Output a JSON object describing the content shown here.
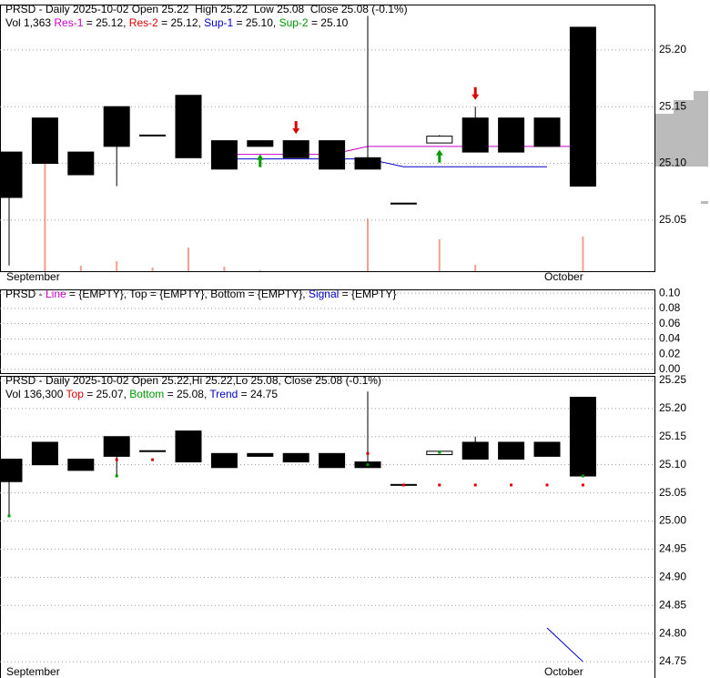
{
  "chart_data": [
    {
      "type": "candlestick",
      "header": [
        [
          {
            "text": "PRSD - Daily 2025-10-02 Open 25.22  High 25.22  Low 25.08  Close 25.08 (-0.1%)"
          }
        ],
        [
          {
            "text": "Vol 1,363 "
          },
          {
            "text": "Res-1",
            "color": "#cc00cc"
          },
          {
            "text": " = 25.12, "
          },
          {
            "text": "Res-2",
            "color": "#dd0000"
          },
          {
            "text": " = 25.12, "
          },
          {
            "text": "Sup-1",
            "color": "#0000cc"
          },
          {
            "text": " = 25.10, "
          },
          {
            "text": "Sup-2",
            "color": "#009900"
          },
          {
            "text": " = 25.10"
          }
        ]
      ],
      "categories": [
        "September",
        null,
        null,
        null,
        null,
        null,
        null,
        null,
        null,
        null,
        null,
        null,
        null,
        null,
        null,
        "October",
        null
      ],
      "open": [
        25.11,
        25.14,
        25.11,
        25.15,
        25.125,
        25.16,
        25.12,
        25.12,
        25.12,
        25.12,
        25.105,
        25.065,
        25.118,
        25.14,
        25.14,
        25.14,
        25.22
      ],
      "high": [
        25.11,
        25.14,
        25.11,
        25.15,
        25.125,
        25.16,
        25.12,
        25.12,
        25.12,
        25.12,
        25.23,
        25.065,
        25.125,
        25.15,
        25.14,
        25.14,
        25.22
      ],
      "low": [
        25.01,
        25.1,
        25.09,
        25.08,
        25.125,
        25.105,
        25.095,
        25.115,
        25.105,
        25.095,
        25.095,
        25.065,
        25.118,
        25.11,
        25.11,
        25.115,
        25.08
      ],
      "close": [
        25.07,
        25.1,
        25.09,
        25.115,
        25.125,
        25.105,
        25.095,
        25.115,
        25.105,
        25.095,
        25.095,
        25.065,
        25.124,
        25.11,
        25.11,
        25.115,
        25.08
      ],
      "color": "#000000",
      "volume": [
        0,
        4230,
        215,
        394,
        143,
        932,
        180,
        36,
        0,
        0,
        2080,
        0,
        1255,
        250,
        0,
        0,
        1363
      ],
      "volume_color": "#f0a090",
      "volume_ylim": [
        0,
        10500
      ],
      "lines": [
        {
          "color": "#cc00cc",
          "values": [
            null,
            null,
            null,
            null,
            null,
            null,
            25.108,
            25.108,
            25.108,
            25.108,
            25.115,
            25.115,
            25.115,
            25.115,
            25.115,
            25.115,
            25.115
          ]
        },
        {
          "color": "#0000cc",
          "values": [
            null,
            null,
            null,
            null,
            null,
            null,
            25.104,
            25.104,
            25.104,
            25.104,
            25.104,
            25.097,
            25.097,
            25.097,
            25.097,
            25.097,
            null
          ]
        }
      ],
      "arrows": [
        {
          "color": "#dd0000",
          "direction": "down",
          "values": [
            null,
            null,
            null,
            null,
            null,
            null,
            null,
            null,
            25.126,
            null,
            null,
            null,
            null,
            25.156,
            null,
            null,
            null
          ]
        },
        {
          "color": "#009900",
          "direction": "up",
          "values": [
            null,
            null,
            null,
            null,
            null,
            null,
            null,
            25.108,
            null,
            null,
            null,
            null,
            25.112,
            null,
            null,
            null,
            null
          ]
        }
      ],
      "ylim": [
        25.005,
        25.24
      ],
      "yticks": [
        {
          "value": 25.2,
          "label": "25.20"
        },
        25.15,
        {
          "value": 25.1,
          "label": "25.10"
        },
        25.05
      ],
      "grid": true
    },
    {
      "type": "line",
      "header": [
        [
          {
            "text": "PRSD - "
          },
          {
            "text": "Line",
            "color": "#cc00cc"
          },
          {
            "text": " = {EMPTY}, Top = {EMPTY}, Bottom = {EMPTY}, "
          },
          {
            "text": "Signal",
            "color": "#0000cc"
          },
          {
            "text": " = {EMPTY}"
          }
        ]
      ],
      "ylim": [
        -0.005,
        0.105
      ],
      "yticks": [
        {
          "value": 0.1,
          "label": "0.10"
        },
        0.08,
        0.06,
        0.04,
        0.02,
        {
          "value": 0,
          "label": "0.00"
        }
      ],
      "grid": true
    },
    {
      "type": "candlestick",
      "header": [
        [
          {
            "text": "PRSD - Daily 2025-10-02 Open 25.22,Hi 25.22,Lo 25.08, Close 25.08 (-0.1%)"
          }
        ],
        [
          {
            "text": "Vol 136,300 "
          },
          {
            "text": "Top",
            "color": "#dd0000"
          },
          {
            "text": " = 25.07, "
          },
          {
            "text": "Bottom",
            "color": "#009900"
          },
          {
            "text": " = 25.08, "
          },
          {
            "text": "Trend",
            "color": "#0000cc"
          },
          {
            "text": " = 24.75"
          }
        ]
      ],
      "categories": [
        "September",
        null,
        null,
        null,
        null,
        null,
        null,
        null,
        null,
        null,
        null,
        null,
        null,
        null,
        null,
        "October",
        null
      ],
      "open": [
        25.11,
        25.14,
        25.11,
        25.15,
        25.125,
        25.16,
        25.12,
        25.12,
        25.12,
        25.12,
        25.105,
        25.065,
        25.118,
        25.14,
        25.14,
        25.14,
        25.22
      ],
      "high": [
        25.11,
        25.14,
        25.11,
        25.15,
        25.125,
        25.16,
        25.12,
        25.12,
        25.12,
        25.12,
        25.23,
        25.065,
        25.125,
        25.15,
        25.14,
        25.14,
        25.22
      ],
      "low": [
        25.01,
        25.1,
        25.09,
        25.08,
        25.125,
        25.105,
        25.095,
        25.115,
        25.105,
        25.095,
        25.095,
        25.065,
        25.118,
        25.11,
        25.11,
        25.115,
        25.08
      ],
      "close": [
        25.07,
        25.1,
        25.09,
        25.115,
        25.125,
        25.105,
        25.095,
        25.115,
        25.105,
        25.095,
        25.095,
        25.065,
        25.124,
        25.11,
        25.11,
        25.115,
        25.08
      ],
      "color": "#000000",
      "markers": [
        {
          "color": "#dd0000",
          "values": [
            null,
            null,
            null,
            25.109,
            25.109,
            null,
            null,
            null,
            null,
            null,
            25.12,
            25.064,
            25.064,
            25.064,
            25.064,
            25.064,
            25.064
          ]
        },
        {
          "color": "#009900",
          "values": [
            25.009,
            null,
            null,
            25.08,
            null,
            null,
            null,
            null,
            null,
            null,
            25.1,
            null,
            25.122,
            null,
            null,
            null,
            25.08
          ]
        }
      ],
      "lines": [
        {
          "color": "#0000cc",
          "values": [
            null,
            null,
            null,
            null,
            null,
            null,
            null,
            null,
            null,
            null,
            null,
            null,
            null,
            null,
            null,
            24.81,
            24.75
          ]
        }
      ],
      "ylim": [
        24.721,
        25.258
      ],
      "yticks": [
        25.25,
        {
          "value": 25.2,
          "label": "25.20"
        },
        25.15,
        {
          "value": 25.1,
          "label": "25.10"
        },
        25.05,
        {
          "value": 25,
          "label": "25.00"
        },
        24.95,
        {
          "value": 24.9,
          "label": "24.90"
        },
        24.85,
        {
          "value": 24.8,
          "label": "24.80"
        },
        24.75
      ],
      "grid": true
    }
  ]
}
